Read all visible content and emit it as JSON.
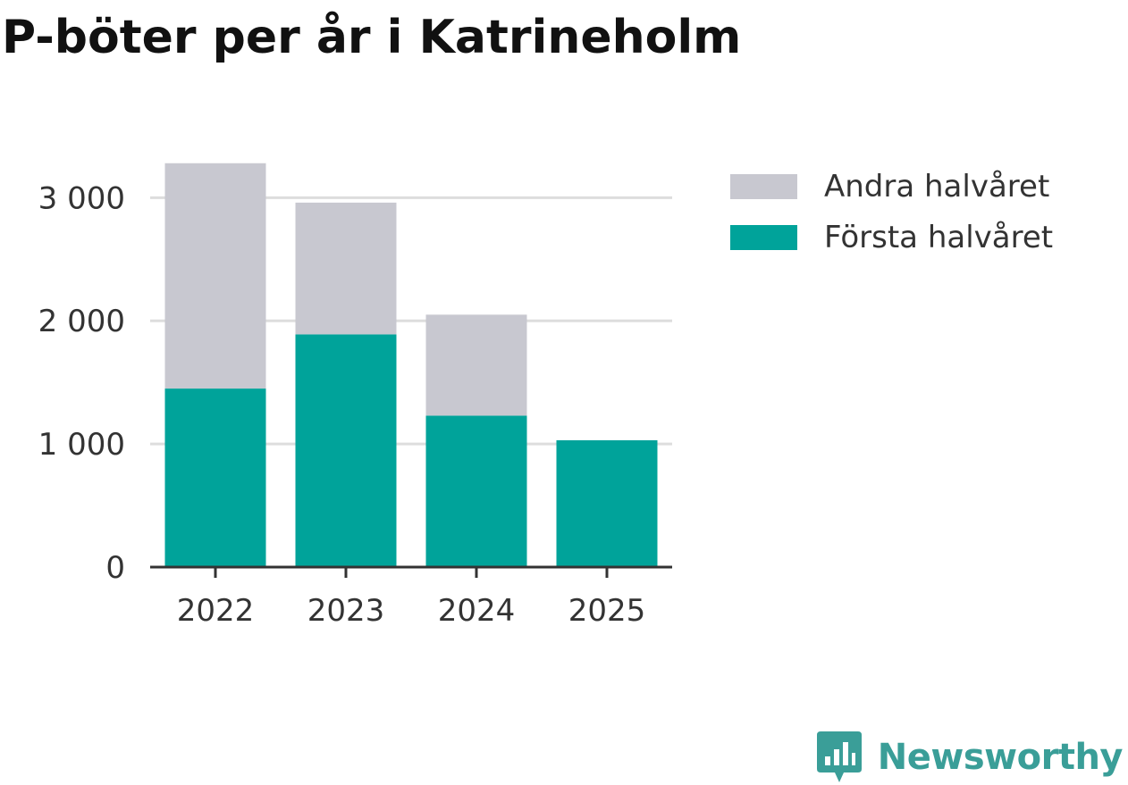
{
  "title": "P-böter per år i Katrineholm",
  "chart_data": {
    "type": "bar",
    "stacked": true,
    "categories": [
      "2022",
      "2023",
      "2024",
      "2025"
    ],
    "series": [
      {
        "name": "Första halvåret",
        "values": [
          1450,
          1890,
          1230,
          1030
        ],
        "color": "#00a39a"
      },
      {
        "name": "Andra halvåret",
        "values": [
          1830,
          1070,
          820,
          0
        ],
        "color": "#c8c8d0"
      }
    ],
    "ylim": [
      0,
      3300
    ],
    "yticks": [
      0,
      1000,
      2000,
      3000
    ],
    "ytick_labels": [
      "0",
      "1 000",
      "2 000",
      "3 000"
    ],
    "grid": true,
    "legend_position": "right",
    "legend_order": [
      "Andra halvåret",
      "Första halvåret"
    ],
    "xlabel": "",
    "ylabel": ""
  },
  "legend": {
    "items": [
      {
        "label": "Andra halvåret",
        "color": "#c8c8d0"
      },
      {
        "label": "Första halvåret",
        "color": "#00a39a"
      }
    ]
  },
  "brand": {
    "name": "Newsworthy",
    "icon": "newsworthy-logo-icon",
    "color": "#3a9e98"
  }
}
